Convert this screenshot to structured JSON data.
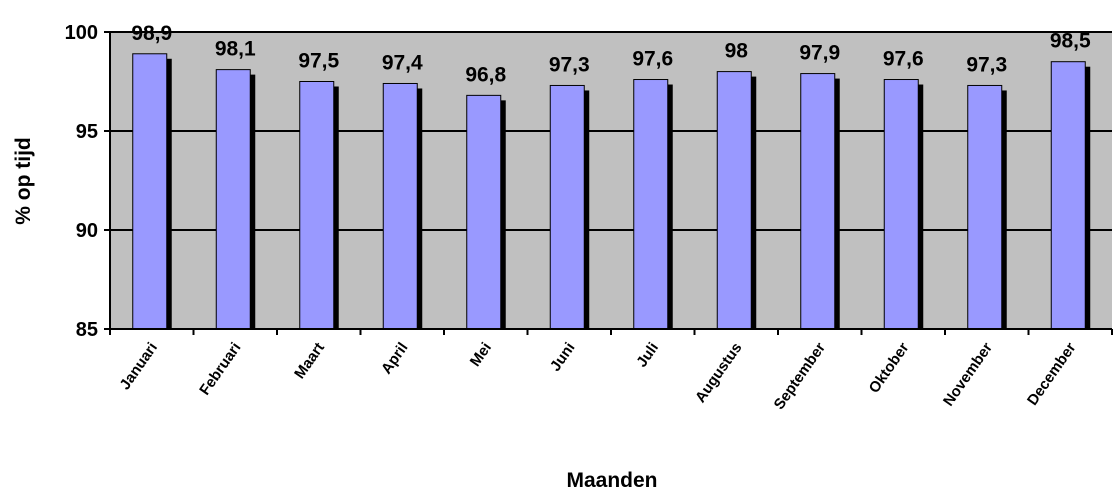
{
  "chart_data": {
    "type": "bar",
    "categories": [
      "Januari",
      "Februari",
      "Maart",
      "April",
      "Mei",
      "Juni",
      "Juli",
      "Augustus",
      "September",
      "Oktober",
      "November",
      "December"
    ],
    "values": [
      98.9,
      98.1,
      97.5,
      97.4,
      96.8,
      97.3,
      97.6,
      98,
      97.9,
      97.6,
      97.3,
      98.5
    ],
    "data_labels": [
      "98,9",
      "98,1",
      "97,5",
      "97,4",
      "96,8",
      "97,3",
      "97,6",
      "98",
      "97,9",
      "97,6",
      "97,3",
      "98,5"
    ],
    "xlabel": "Maanden",
    "ylabel": "% op tijd",
    "ylim": [
      85,
      100
    ],
    "yticks": [
      85,
      90,
      95,
      100
    ],
    "ytick_labels": [
      "85",
      "90",
      "95",
      "100"
    ],
    "grid": true,
    "legend": "none",
    "colors": {
      "bar": "#9999ff",
      "bar_shadow": "#000000",
      "plot_background": "#c0c0c0",
      "gridline": "#000000"
    }
  }
}
